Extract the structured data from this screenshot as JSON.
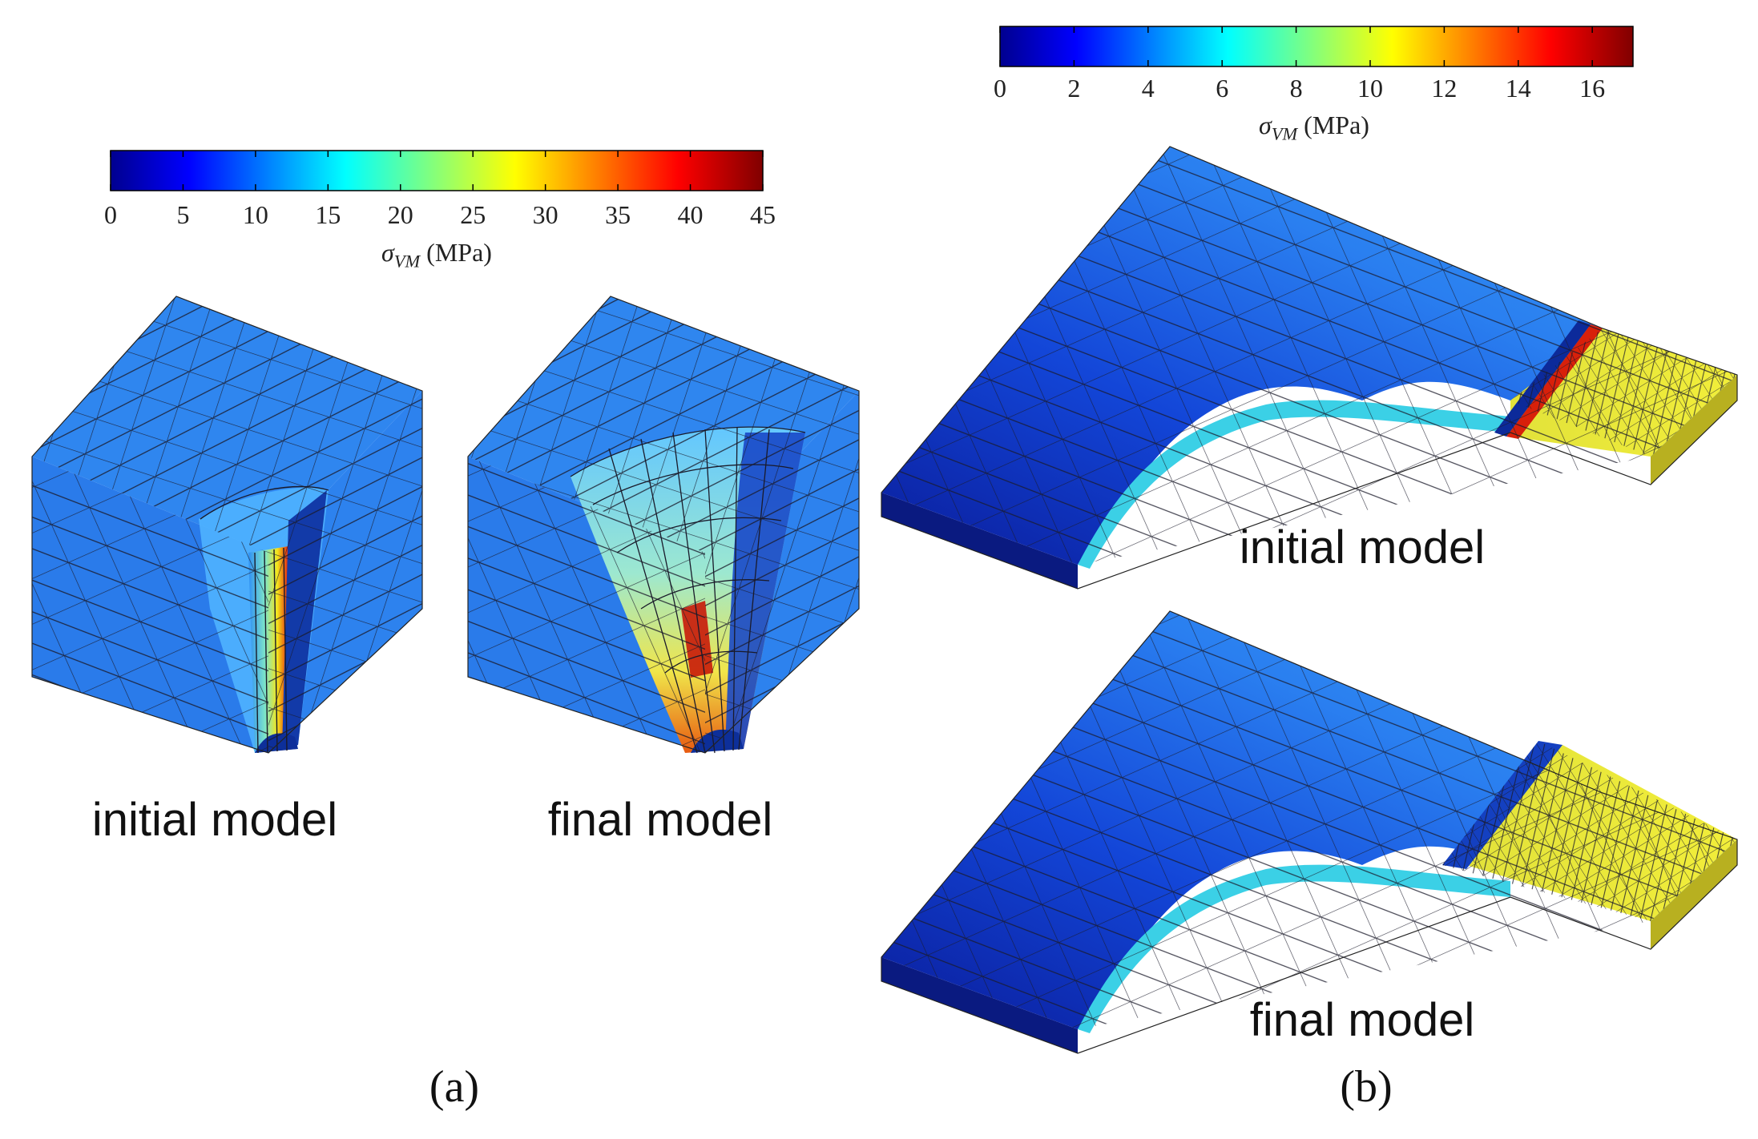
{
  "panel_a": {
    "colorbar": {
      "ticks": [
        "0",
        "5",
        "10",
        "15",
        "20",
        "25",
        "30",
        "35",
        "40",
        "45"
      ],
      "label_symbol": "σ",
      "label_subscript": "VM",
      "label_unit": " (MPa)"
    },
    "models": [
      "initial model",
      "final model"
    ],
    "panel_label": "(a)"
  },
  "panel_b": {
    "colorbar": {
      "ticks": [
        "0",
        "2",
        "4",
        "6",
        "8",
        "10",
        "12",
        "14",
        "16"
      ],
      "label_symbol": "σ",
      "label_subscript": "VM",
      "label_unit": " (MPa)"
    },
    "models": [
      "initial model",
      "final model"
    ],
    "panel_label": "(b)"
  },
  "colormap": "jet"
}
